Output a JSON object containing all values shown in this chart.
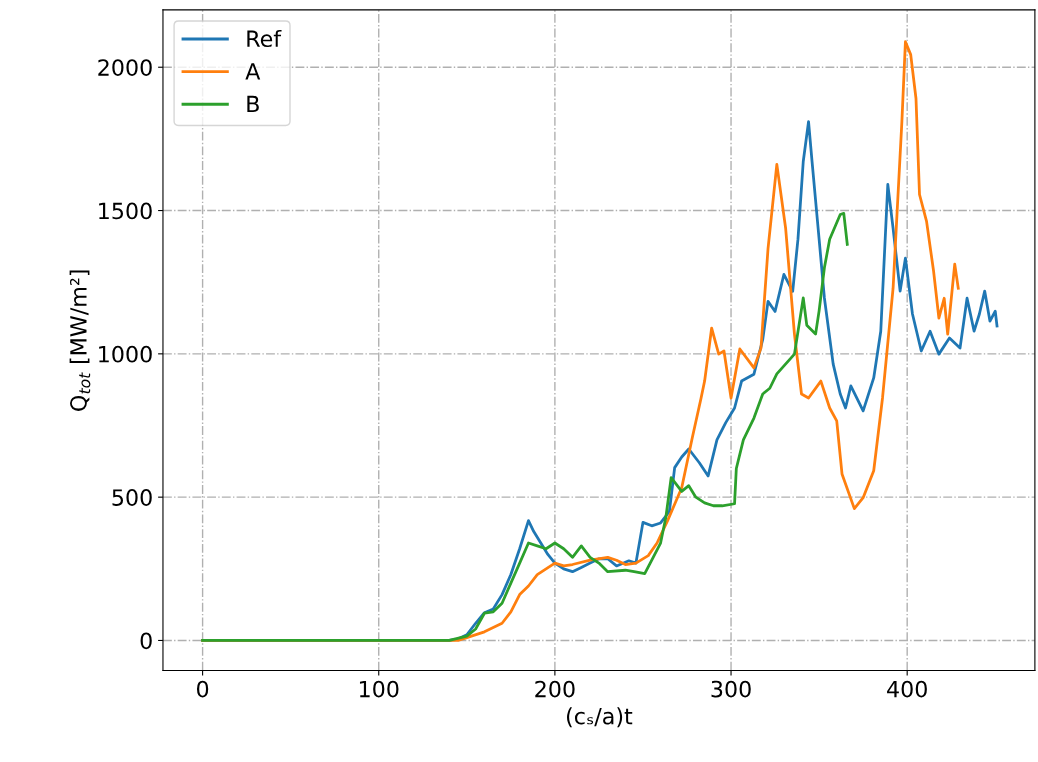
{
  "chart_data": {
    "type": "line",
    "xlabel": "(cₛ/a)t",
    "ylabel": "Q$_{tot}$ [MW/m²]",
    "xlim": [
      -22.5,
      472.5
    ],
    "ylim": [
      -105,
      2200
    ],
    "xticks": [
      0,
      100,
      200,
      300,
      400
    ],
    "yticks": [
      0,
      500,
      1000,
      1500,
      2000
    ],
    "grid": true,
    "legend": "top left",
    "marker": "none",
    "line_style": "solid",
    "series": [
      {
        "name": "Ref",
        "color": "#1f77b4",
        "x": [
          0,
          140,
          145,
          150,
          155,
          160,
          165,
          170,
          175,
          180,
          185,
          188,
          192,
          196,
          200,
          205,
          210,
          215,
          220,
          225,
          230,
          235,
          242,
          246,
          250,
          255,
          260,
          265,
          268,
          272,
          276,
          282,
          287,
          292,
          297,
          302,
          306,
          313,
          318,
          321,
          325,
          330,
          335,
          338,
          341,
          344,
          346,
          350,
          353,
          358,
          362,
          365,
          368,
          375,
          381,
          385,
          389,
          392,
          396,
          399,
          403,
          408,
          413,
          418,
          424,
          430,
          434,
          438,
          441,
          444,
          447,
          450,
          451
        ],
        "values": [
          0,
          0,
          5,
          20,
          60,
          97,
          110,
          160,
          230,
          320,
          418,
          380,
          340,
          300,
          270,
          250,
          240,
          255,
          270,
          285,
          285,
          260,
          278,
          270,
          412,
          400,
          410,
          450,
          603,
          640,
          668,
          620,
          574,
          700,
          760,
          811,
          905,
          929,
          1050,
          1183,
          1148,
          1277,
          1218,
          1400,
          1671,
          1810,
          1671,
          1400,
          1195,
          964,
          860,
          811,
          888,
          801,
          916,
          1079,
          1591,
          1438,
          1219,
          1334,
          1139,
          1010,
          1079,
          999,
          1055,
          1020,
          1194,
          1079,
          1139,
          1219,
          1114,
          1149,
          1097
        ]
      },
      {
        "name": "A",
        "color": "#ff7f0e",
        "x": [
          0,
          145,
          150,
          160,
          170,
          175,
          180,
          185,
          190,
          195,
          200,
          205,
          210,
          220,
          230,
          235,
          240,
          246,
          253,
          258,
          264,
          272,
          278,
          283,
          285,
          289,
          293,
          296,
          300,
          305,
          313,
          317,
          321,
          326,
          331,
          336,
          340,
          344,
          351,
          356,
          360,
          363,
          370,
          375,
          381,
          386,
          392,
          397,
          399,
          402,
          405,
          407,
          411,
          415,
          418,
          421,
          423,
          427,
          429
        ],
        "values": [
          0,
          0,
          10,
          30,
          60,
          100,
          160,
          190,
          230,
          250,
          270,
          260,
          265,
          280,
          290,
          280,
          265,
          270,
          296,
          340,
          418,
          533,
          707,
          846,
          905,
          1090,
          999,
          1010,
          846,
          1017,
          951,
          1020,
          1367,
          1661,
          1438,
          1069,
          860,
          846,
          905,
          811,
          766,
          581,
          460,
          498,
          592,
          846,
          1229,
          1811,
          2089,
          2044,
          1891,
          1556,
          1462,
          1288,
          1125,
          1194,
          1069,
          1313,
          1229
        ]
      },
      {
        "name": "B",
        "color": "#2ca02c",
        "x": [
          0,
          140,
          150,
          155,
          160,
          165,
          170,
          175,
          180,
          185,
          190,
          195,
          200,
          205,
          210,
          215,
          220,
          225,
          230,
          240,
          245,
          251,
          255,
          260,
          263,
          266,
          272,
          276,
          280,
          285,
          290,
          295,
          302,
          303,
          307,
          313,
          318,
          322,
          326,
          336,
          341,
          343,
          348,
          350,
          353,
          356,
          362,
          364,
          366
        ],
        "values": [
          0,
          0,
          15,
          40,
          95,
          100,
          130,
          200,
          270,
          340,
          330,
          320,
          340,
          320,
          290,
          330,
          290,
          270,
          240,
          245,
          240,
          233,
          280,
          340,
          430,
          568,
          520,
          540,
          500,
          480,
          470,
          470,
          477,
          600,
          700,
          776,
          860,
          880,
          930,
          999,
          1195,
          1100,
          1069,
          1150,
          1300,
          1400,
          1486,
          1490,
          1382
        ]
      }
    ]
  }
}
